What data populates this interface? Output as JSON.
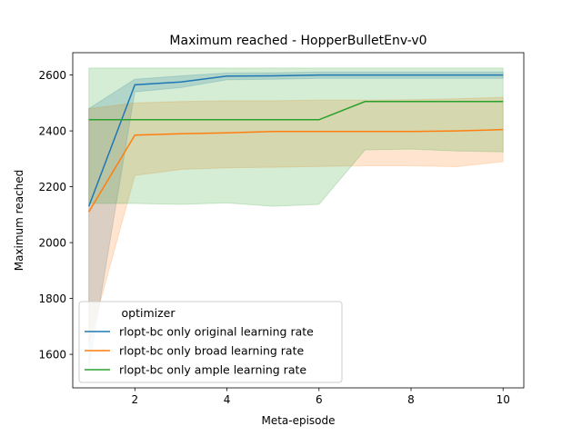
{
  "chart_data": {
    "type": "line",
    "title": "Maximum reached - HopperBulletEnv-v0",
    "xlabel": "Meta-episode",
    "ylabel": "Maximum reached",
    "xlim": [
      0.65,
      10.45
    ],
    "ylim": [
      1480,
      2680
    ],
    "xticks": [
      2,
      4,
      6,
      8,
      10
    ],
    "yticks": [
      1600,
      1800,
      2000,
      2200,
      2400,
      2600
    ],
    "grid": false,
    "legend": {
      "title": "optimizer",
      "placement": "lower-left"
    },
    "x": [
      1,
      2,
      3,
      4,
      5,
      6,
      7,
      8,
      9,
      10
    ],
    "series": [
      {
        "name": "rlopt-bc only original learning rate",
        "color": "#1f77b4",
        "values": [
          2130,
          2565,
          2575,
          2596,
          2597,
          2600,
          2600,
          2600,
          2600,
          2600
        ],
        "lower": [
          1550,
          2540,
          2555,
          2583,
          2585,
          2588,
          2588,
          2588,
          2588,
          2588
        ],
        "upper": [
          2480,
          2585,
          2597,
          2607,
          2608,
          2611,
          2611,
          2611,
          2611,
          2611
        ]
      },
      {
        "name": "rlopt-bc only broad learning rate",
        "color": "#ff7f0e",
        "values": [
          2110,
          2385,
          2390,
          2393,
          2398,
          2398,
          2398,
          2398,
          2400,
          2405
        ],
        "lower": [
          1640,
          2240,
          2262,
          2268,
          2270,
          2273,
          2275,
          2275,
          2272,
          2290
        ],
        "upper": [
          2480,
          2500,
          2505,
          2508,
          2508,
          2510,
          2510,
          2512,
          2515,
          2520
        ]
      },
      {
        "name": "rlopt-bc only ample learning rate",
        "color": "#2ca02c",
        "values": [
          2440,
          2440,
          2440,
          2440,
          2440,
          2440,
          2505,
          2505,
          2505,
          2505
        ],
        "lower": [
          2140,
          2140,
          2137,
          2142,
          2130,
          2137,
          2332,
          2335,
          2328,
          2325
        ],
        "upper": [
          2625,
          2625,
          2625,
          2625,
          2625,
          2625,
          2625,
          2625,
          2625,
          2625
        ]
      }
    ]
  }
}
